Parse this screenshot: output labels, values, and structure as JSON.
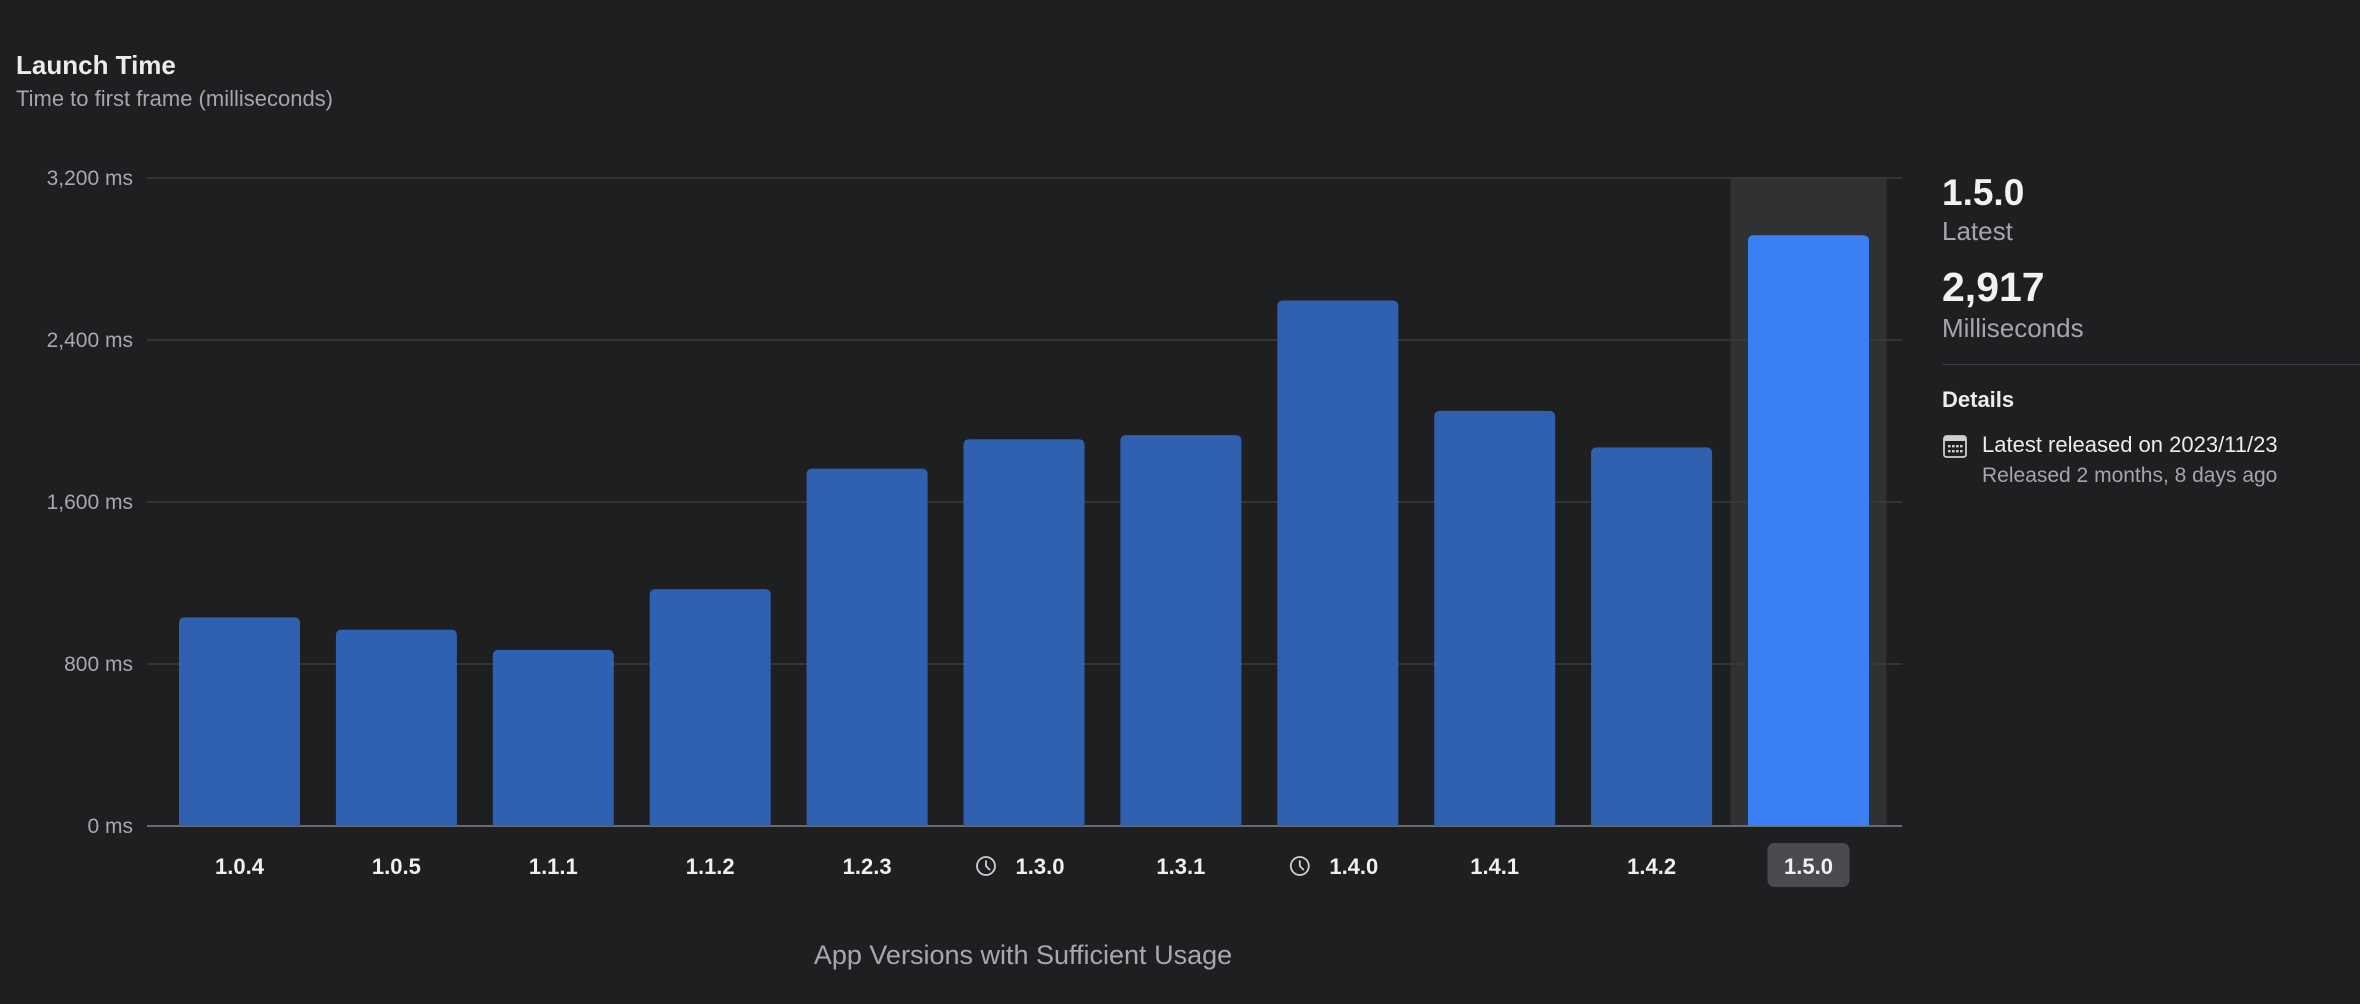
{
  "header": {
    "title": "Launch Time",
    "subtitle": "Time to first frame (milliseconds)"
  },
  "chart_data": {
    "type": "bar",
    "categories": [
      "1.0.4",
      "1.0.5",
      "1.1.1",
      "1.1.2",
      "1.2.3",
      "1.3.0",
      "1.3.1",
      "1.4.0",
      "1.4.1",
      "1.4.2",
      "1.5.0"
    ],
    "values": [
      1030,
      970,
      870,
      1170,
      1765,
      1910,
      1930,
      2595,
      2050,
      1870,
      2917
    ],
    "category_icons": [
      "",
      "",
      "",
      "",
      "",
      "clock-icon",
      "",
      "clock-icon",
      "",
      "",
      ""
    ],
    "selected_category": "1.5.0",
    "ylim": [
      0,
      3200
    ],
    "yticks": [
      0,
      800,
      1600,
      2400,
      3200
    ],
    "ytick_labels": [
      "0 ms",
      "800 ms",
      "1,600 ms",
      "2,400 ms",
      "3,200 ms"
    ],
    "xlabel": "App Versions with Sufficient Usage",
    "ylabel": "",
    "grid": true,
    "colors": {
      "bar": "#3060b0",
      "bar_selected": "#3a80f4",
      "selection_band": "#303133",
      "grid": "#3a3b3e",
      "axis": "#6a6b6e",
      "selected_label_bg": "#4a4b4e",
      "icon": "#cfcfd2"
    }
  },
  "side_panel": {
    "version": "1.5.0",
    "version_caption": "Latest",
    "value": "2,917",
    "value_caption": "Milliseconds",
    "details_heading": "Details",
    "release_primary": "Latest released on 2023/11/23",
    "release_secondary": "Released 2 months, 8 days ago",
    "release_icon": "calendar-icon"
  }
}
